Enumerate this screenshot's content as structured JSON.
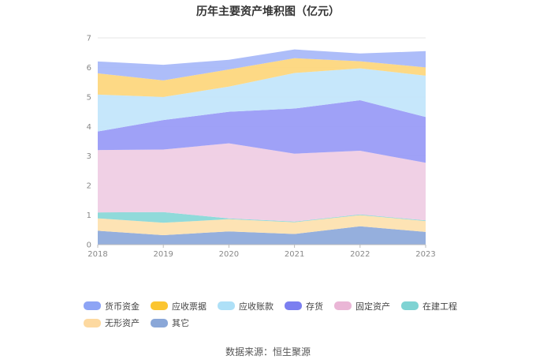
{
  "source_text": "数据来源：恒生聚源",
  "chart_data": {
    "type": "area",
    "stacked": true,
    "title": "历年主要资产堆积图（亿元）",
    "xlabel": "",
    "ylabel": "",
    "categories": [
      "2018",
      "2019",
      "2020",
      "2021",
      "2022",
      "2023"
    ],
    "ylim": [
      0,
      7
    ],
    "yticks": [
      "0",
      "1",
      "2",
      "3",
      "4",
      "5",
      "6",
      "7"
    ],
    "grid": true,
    "legend_position": "bottom",
    "series": [
      {
        "name": "其它",
        "color": "#8fabdb",
        "values": [
          0.47,
          0.32,
          0.45,
          0.36,
          0.62,
          0.43
        ]
      },
      {
        "name": "无形资产",
        "color": "#fde2b0",
        "values": [
          0.42,
          0.42,
          0.41,
          0.4,
          0.38,
          0.37
        ]
      },
      {
        "name": "在建工程",
        "color": "#8ad8d8",
        "values": [
          0.2,
          0.36,
          0.03,
          0.02,
          0.02,
          0.02
        ]
      },
      {
        "name": "固定资产",
        "color": "#efcde4",
        "values": [
          2.11,
          2.12,
          2.54,
          2.3,
          2.16,
          1.95
        ]
      },
      {
        "name": "存货",
        "color": "#9a9cf7",
        "values": [
          0.63,
          1.0,
          1.07,
          1.53,
          1.71,
          1.55
        ]
      },
      {
        "name": "应收账款",
        "color": "#c3e6fb",
        "values": [
          1.25,
          0.78,
          0.85,
          1.2,
          1.08,
          1.4
        ]
      },
      {
        "name": "应收票据",
        "color": "#fdd77e",
        "values": [
          0.72,
          0.56,
          0.58,
          0.5,
          0.24,
          0.28
        ]
      },
      {
        "name": "货币资金",
        "color": "#a9b9f9",
        "values": [
          0.4,
          0.53,
          0.33,
          0.3,
          0.26,
          0.55
        ]
      }
    ],
    "legend_order": [
      "货币资金",
      "应收票据",
      "应收账款",
      "存货",
      "固定资产",
      "在建工程",
      "无形资产",
      "其它"
    ],
    "legend_colors": {
      "货币资金": "#8da4f5",
      "应收票据": "#fbc531",
      "应收账款": "#aee0f7",
      "存货": "#7b7ff0",
      "固定资产": "#eab6d6",
      "在建工程": "#7fd3d3",
      "无形资产": "#fdd9a0",
      "其它": "#8aa7d8"
    }
  }
}
